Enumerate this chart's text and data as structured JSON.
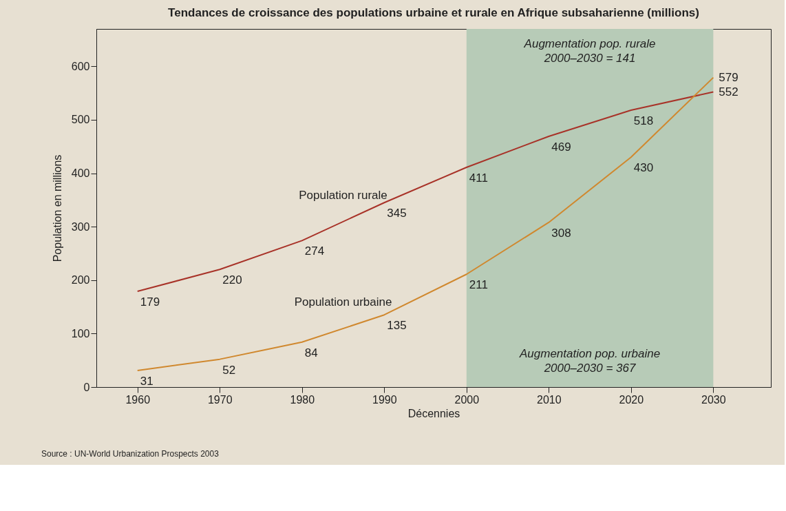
{
  "chart_data": {
    "type": "line",
    "title": "Tendances de croissance des populations urbaine et rurale en Afrique subsaharienne (millions)",
    "xlabel": "Décennies",
    "ylabel": "Population en millions",
    "x": [
      1960,
      1970,
      1980,
      1990,
      2000,
      2010,
      2020,
      2030
    ],
    "series": [
      {
        "name": "Population rurale",
        "color": "#a83228",
        "values": [
          179,
          220,
          274,
          345,
          411,
          469,
          518,
          552
        ]
      },
      {
        "name": "Population urbaine",
        "color": "#d0882e",
        "values": [
          31,
          52,
          84,
          135,
          211,
          308,
          430,
          579
        ]
      }
    ],
    "xlim": [
      1955,
      2037
    ],
    "xticks": [
      1960,
      1970,
      1980,
      1990,
      2000,
      2010,
      2020,
      2030
    ],
    "ylim": [
      0,
      670
    ],
    "yticks": [
      0,
      100,
      200,
      300,
      400,
      500,
      600
    ],
    "bands": [
      {
        "axis": "x",
        "from": 2000,
        "to": 2030,
        "label": null,
        "color": "#b7cbb7"
      }
    ],
    "annotations": [
      "Augmentation pop. rurale\n2000–2030 = 141",
      "Augmentation pop. urbaine\n2000–2030 = 367",
      "Source : UN-World Urbanization Prospects 2003"
    ],
    "data_labels": true,
    "grid": false,
    "legend": false,
    "line_style": "solid",
    "marker": "none"
  }
}
